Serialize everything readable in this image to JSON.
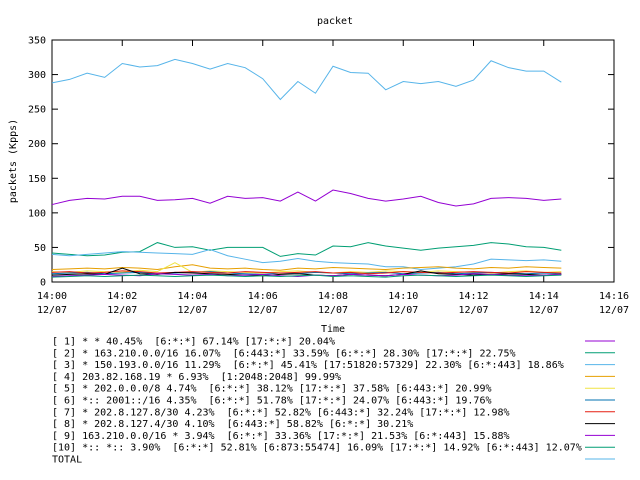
{
  "chart_data": {
    "type": "line",
    "title": "packet",
    "x_label": "Time",
    "y_label": "packets (Kpps)",
    "xlim": [
      0,
      16
    ],
    "ylim": [
      0,
      350
    ],
    "xticks": [
      {
        "value": 0,
        "label": "14:00",
        "sublabel": "12/07"
      },
      {
        "value": 2,
        "label": "14:02",
        "sublabel": "12/07"
      },
      {
        "value": 4,
        "label": "14:04",
        "sublabel": "12/07"
      },
      {
        "value": 6,
        "label": "14:06",
        "sublabel": "12/07"
      },
      {
        "value": 8,
        "label": "14:08",
        "sublabel": "12/07"
      },
      {
        "value": 10,
        "label": "14:10",
        "sublabel": "12/07"
      },
      {
        "value": 12,
        "label": "14:12",
        "sublabel": "12/07"
      },
      {
        "value": 14,
        "label": "14:14",
        "sublabel": "12/07"
      },
      {
        "value": 16,
        "label": "14:16",
        "sublabel": "12/07"
      }
    ],
    "yticks": [
      0,
      50,
      100,
      150,
      200,
      250,
      300,
      350
    ],
    "x": [
      0,
      0.5,
      1,
      1.5,
      2,
      2.5,
      3,
      3.5,
      4,
      4.5,
      5,
      5.5,
      6,
      6.5,
      7,
      7.5,
      8,
      8.5,
      9,
      9.5,
      10,
      10.5,
      11,
      11.5,
      12,
      12.5,
      13,
      13.5,
      14,
      14.5
    ],
    "series": [
      {
        "name": "[ 1] * * 40.45%  [6:*:*] 67.14% [17:*:*] 20.04%",
        "color": "#9400d3",
        "values": [
          112,
          118,
          121,
          120,
          124,
          124,
          118,
          119,
          121,
          114,
          124,
          121,
          122,
          117,
          130,
          117,
          133,
          128,
          121,
          117,
          120,
          124,
          115,
          110,
          113,
          121,
          122,
          121,
          118,
          120
        ]
      },
      {
        "name": "[ 2] * 163.210.0.0/16 16.07%  [6:443:*] 33.59% [6:*:*] 28.30% [17:*:*] 22.75%",
        "color": "#009e73",
        "values": [
          42,
          40,
          38,
          39,
          43,
          44,
          57,
          50,
          51,
          46,
          50,
          50,
          50,
          37,
          41,
          39,
          52,
          51,
          57,
          52,
          49,
          46,
          49,
          51,
          53,
          57,
          55,
          51,
          50,
          46
        ]
      },
      {
        "name": "[ 3] * 150.193.0.0/16 11.29%  [6:*:*] 45.41% [17:51820:57329] 22.30% [6:*:443] 18.86%",
        "color": "#56b4e9",
        "values": [
          40,
          38,
          40,
          42,
          44,
          43,
          42,
          41,
          40,
          47,
          38,
          33,
          28,
          30,
          34,
          30,
          28,
          27,
          26,
          22,
          22,
          18,
          20,
          22,
          26,
          33,
          32,
          31,
          32,
          30
        ]
      },
      {
        "name": "[ 4] 203.82.168.19 * 6.93%  [1:2048:2048] 99.99%",
        "color": "#e69f00",
        "values": [
          18,
          19,
          20,
          19,
          21,
          20,
          18,
          22,
          25,
          20,
          19,
          20,
          18,
          17,
          20,
          19,
          21,
          20,
          19,
          18,
          20,
          21,
          22,
          20,
          19,
          21,
          20,
          22,
          21,
          20
        ]
      },
      {
        "name": "[ 5] * 202.0.0.0/8 4.74%  [6:*:*] 38.12% [17:*:*] 37.58% [6:443:*] 20.99%",
        "color": "#f0e442",
        "values": [
          15,
          14,
          16,
          15,
          14,
          17,
          15,
          28,
          14,
          16,
          15,
          14,
          13,
          15,
          16,
          14,
          13,
          15,
          14,
          16,
          15,
          14,
          16,
          15,
          14,
          13,
          15,
          16,
          14,
          15
        ]
      },
      {
        "name": "[ 6] *:: 2001::/16 4.35%  [6:*:*] 51.78% [17:*:*] 24.07% [6:443:*] 19.76%",
        "color": "#0072b2",
        "values": [
          12,
          13,
          14,
          12,
          13,
          14,
          12,
          13,
          14,
          15,
          13,
          12,
          11,
          13,
          12,
          14,
          13,
          12,
          13,
          14,
          12,
          13,
          14,
          12,
          13,
          14,
          13,
          12,
          13,
          12
        ]
      },
      {
        "name": "[ 7] * 202.8.127.8/30 4.23%  [6:*:*] 52.82% [6:443:*] 32.24% [17:*:*] 12.98%",
        "color": "#e51e10",
        "values": [
          14,
          15,
          13,
          14,
          16,
          15,
          13,
          14,
          15,
          14,
          13,
          15,
          14,
          13,
          14,
          15,
          13,
          14,
          12,
          13,
          15,
          14,
          13,
          14,
          15,
          14,
          13,
          15,
          14,
          13
        ]
      },
      {
        "name": "[ 8] * 202.8.127.4/30 4.10%  [6:443:*] 58.82% [6:*:*] 30.21%",
        "color": "#000000",
        "values": [
          10,
          11,
          12,
          11,
          20,
          12,
          11,
          14,
          13,
          12,
          11,
          10,
          9,
          11,
          12,
          10,
          9,
          11,
          10,
          9,
          11,
          16,
          12,
          11,
          10,
          11,
          12,
          11,
          10,
          11
        ]
      },
      {
        "name": "[ 9] 163.210.0.0/16 * 3.94%  [6:*:*] 33.36% [17:*:*] 21.53% [6:*:443] 15.88%",
        "color": "#9400d3",
        "values": [
          8,
          9,
          10,
          11,
          10,
          9,
          12,
          11,
          10,
          11,
          9,
          10,
          11,
          9,
          8,
          10,
          9,
          11,
          10,
          9,
          11,
          10,
          9,
          10,
          12,
          11,
          10,
          9,
          10,
          11
        ]
      },
      {
        "name": "[10] *:: *:: 3.90%  [6:*:*] 52.81% [6:873:55474] 16.09% [17:*:*] 14.92% [6:*:443] 12.07%",
        "color": "#009e73",
        "values": [
          7,
          8,
          9,
          8,
          9,
          10,
          9,
          8,
          9,
          10,
          9,
          8,
          9,
          8,
          9,
          10,
          8,
          9,
          8,
          7,
          9,
          10,
          9,
          8,
          9,
          10,
          9,
          8,
          9,
          10
        ]
      },
      {
        "name": "TOTAL",
        "color": "#56b4e9",
        "values": [
          288,
          293,
          302,
          296,
          316,
          311,
          313,
          322,
          316,
          308,
          316,
          310,
          294,
          264,
          290,
          273,
          312,
          303,
          302,
          278,
          290,
          287,
          290,
          283,
          292,
          320,
          310,
          305,
          305,
          289
        ]
      }
    ]
  }
}
